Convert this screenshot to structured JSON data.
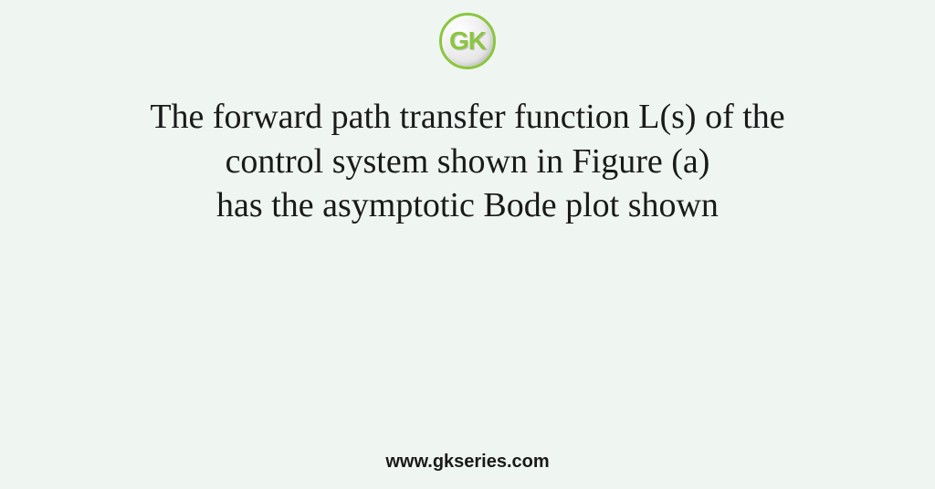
{
  "logo": {
    "text": "GK",
    "border_color": "#8bc63f",
    "text_color": "#8bc63f"
  },
  "main": {
    "line1": "The forward path transfer function L(s) of the",
    "line2": "control system shown in Figure (a)",
    "line3": "has the asymptotic Bode plot shown"
  },
  "footer": {
    "url": "www.gkseries.com"
  },
  "colors": {
    "background": "#eff5f0",
    "text": "#1a1a1a"
  }
}
